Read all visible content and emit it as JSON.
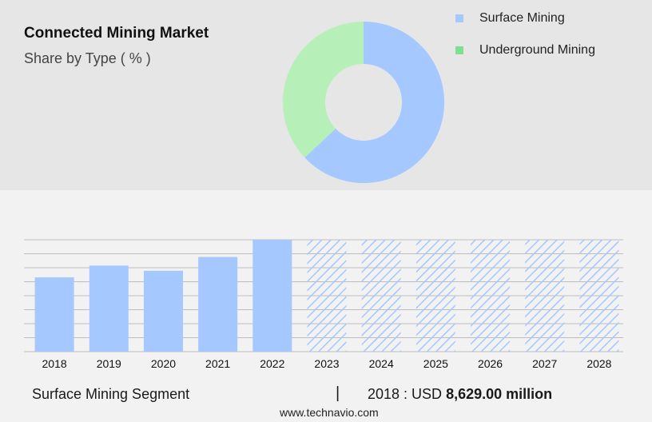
{
  "header": {
    "title": "Connected Mining Market",
    "subtitle": "Share by Type ( % )"
  },
  "legend": {
    "items": [
      {
        "label": "Surface Mining",
        "color": "#a4c8ff"
      },
      {
        "label": "Underground Mining",
        "color": "#7ee08c"
      }
    ]
  },
  "chart_data": [
    {
      "type": "pie",
      "variant": "donut",
      "series": [
        {
          "name": "Surface Mining",
          "value": 63,
          "color": "#a4c8ff"
        },
        {
          "name": "Underground Mining",
          "value": 37,
          "color": "#b6f0b8"
        }
      ]
    },
    {
      "type": "bar",
      "categories": [
        "2018",
        "2019",
        "2020",
        "2021",
        "2022",
        "2023",
        "2024",
        "2025",
        "2026",
        "2027",
        "2028"
      ],
      "values": [
        8629,
        10000,
        9400,
        11000,
        13000,
        null,
        null,
        null,
        null,
        null,
        null
      ],
      "forecast_categories": [
        "2023",
        "2024",
        "2025",
        "2026",
        "2027",
        "2028"
      ],
      "ylim": [
        0,
        13000
      ],
      "grid": true,
      "bar_color": "#a4c8ff",
      "forecast_style": "hatched"
    }
  ],
  "footer": {
    "segment": "Surface Mining Segment",
    "separator": "|",
    "year_label": "2018 : USD",
    "value": "8,629.00 million"
  },
  "source_url": "www.technavio.com"
}
